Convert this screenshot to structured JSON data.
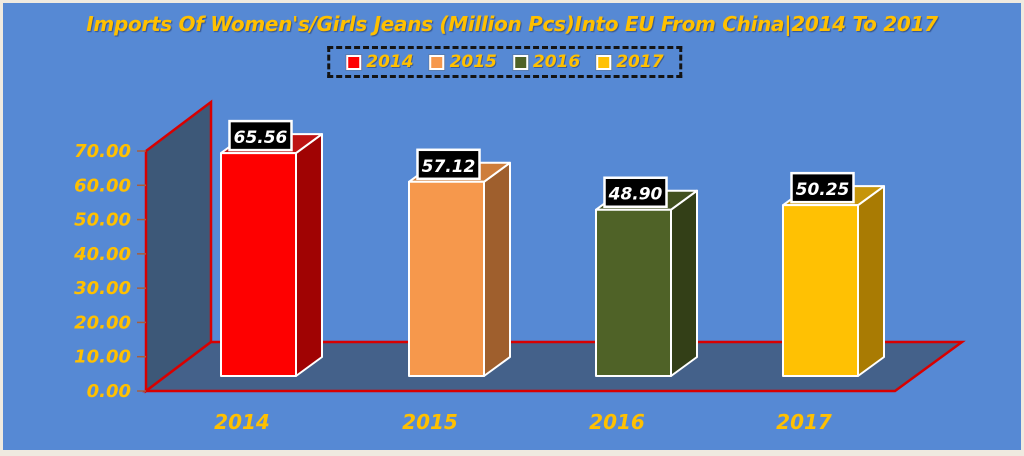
{
  "title": "Imports Of Women's/Girls Jeans (Million Pcs)Into EU From China|2014 To 2017",
  "legend": {
    "items": [
      {
        "label": "2014",
        "color": "#FE0000"
      },
      {
        "label": "2015",
        "color": "#F6984C"
      },
      {
        "label": "2016",
        "color": "#4F6227"
      },
      {
        "label": "2017",
        "color": "#FFC103"
      }
    ]
  },
  "chart_data": {
    "type": "bar",
    "style": "3d-column",
    "title": "Imports Of Women's/Girls Jeans (Million Pcs)Into EU From China|2014 To 2017",
    "categories": [
      "2014",
      "2015",
      "2016",
      "2017"
    ],
    "values": [
      65.56,
      57.12,
      48.9,
      50.25
    ],
    "data_labels": [
      "65.56",
      "57.12",
      "48.90",
      "50.25"
    ],
    "xlabel": "",
    "ylabel": "",
    "ylim": [
      0,
      70
    ],
    "ytick_interval": 10,
    "ytick_labels": [
      "0.00",
      "10.00",
      "20.00",
      "30.00",
      "40.00",
      "50.00",
      "60.00",
      "70.00"
    ],
    "grid": false,
    "legend_position": "top",
    "bar_colors": [
      {
        "front": "#FE0000",
        "top": "#BE1212",
        "side": "#A00303"
      },
      {
        "front": "#F6984C",
        "top": "#CE7D3A",
        "side": "#9F5F2D"
      },
      {
        "front": "#4F6227",
        "top": "#42511F",
        "side": "#333F17"
      },
      {
        "front": "#FFC103",
        "top": "#C6950A",
        "side": "#A97B03"
      }
    ]
  },
  "colors": {
    "background": "#5689D4",
    "frame": "#EFEAE0",
    "gold_text": "#FFC000",
    "axis_line": "#D80000",
    "tick_mark": "#A65E3E",
    "wall_fill": "#3D5878",
    "floor_fill": "#44618A",
    "bar_edge": "#FFFFFF",
    "label_box_bg": "#000000",
    "label_box_border": "#FFFFFF",
    "label_text": "#FFFFFF",
    "legend_border": "#141414"
  }
}
